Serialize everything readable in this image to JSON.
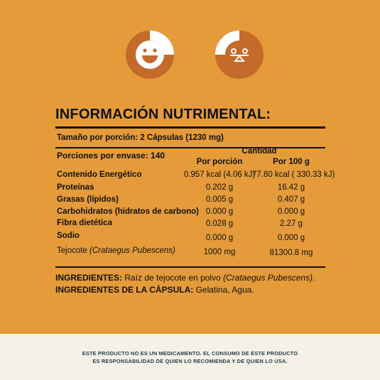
{
  "title": "INFORMACIÓN NUTRIMENTAL:",
  "serving_size": "Tamaño por porción: 2 Cápsulas (1230 mg)",
  "servings_per_container": "Porciones por envase:  140",
  "header": {
    "quantity": "Cantidad",
    "per_serving": "Por porción",
    "per_100g": "Por 100 g"
  },
  "rows": [
    {
      "label": "Contenido Energético",
      "per_serving": "0.957 kcal (4.06 kJ)",
      "per_100g": "77.80 kcal ( 330.33 kJ)"
    },
    {
      "label": "Proteínas",
      "per_serving": "0.202 g",
      "per_100g": "16.42 g"
    },
    {
      "label": "Grasas (lípidos)",
      "per_serving": "0.005 g",
      "per_100g": "0.407 g"
    },
    {
      "label": "Carbohidratos (hidratos de carbono)",
      "per_serving": "0.000 g",
      "per_100g": "0.000 g"
    },
    {
      "label": "Fibra dietética",
      "per_serving": "0.028 g",
      "per_100g": "2.27 g"
    },
    {
      "label": "Sodio",
      "per_serving": "0.000 g",
      "per_100g": "0.000 g"
    }
  ],
  "tejocote": {
    "label": "Tejocote",
    "label_italic": "(Crataegus Pubescens)",
    "per_serving": "1000 mg",
    "per_100g": "81300.8 mg"
  },
  "ingredients": {
    "label": "INGREDIENTES:",
    "text": " Raíz de tejocote en polvo ",
    "italic": "(Crataegus Pubescens)",
    "end": "."
  },
  "capsule_ingredients": {
    "label": "INGREDIENTES DE LA CÁPSULA:",
    "text": " Gelatina, Agua."
  },
  "disclaimer": {
    "line1": "ESTE PRODUCTO NO ES UN MEDICAMENTO. EL CONSUMO DE ESTE PRODUCTO",
    "line2": "ES RESPONSABILIDAD DE QUIEN LO RECOMIENDA Y DE QUIEN LO USA."
  },
  "colors": {
    "background": "#e59b3a",
    "ring_dark": "#c46a2a",
    "icon_white": "#ffffff",
    "footer_bg": "#f6f1e6",
    "footer_text": "#1f3a44"
  },
  "icons": [
    "smiley-icon",
    "balance-scale-icon"
  ]
}
